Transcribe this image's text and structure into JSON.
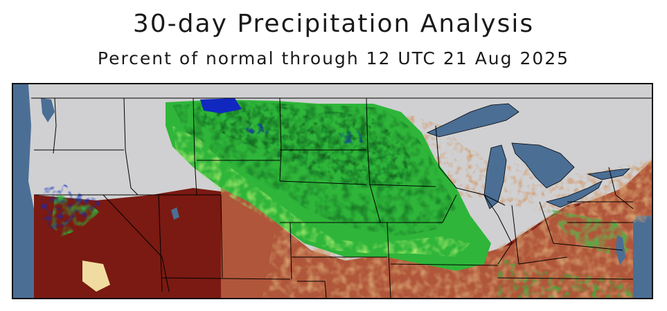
{
  "header": {
    "title": "30-day Precipitation Analysis",
    "subtitle": "Percent of normal through 12 UTC 21 Aug 2025"
  },
  "map": {
    "region": "Western and Central United States with Great Lakes",
    "colors": {
      "ocean_lakes": "#4b6e95",
      "no_data_land": "#d0d0d2",
      "very_dry": "#7a1a12",
      "dry": "#b0563a",
      "below_normal": "#d39a6a",
      "slightly_below": "#e8c7a2",
      "near_normal": "#9ee86a",
      "above_normal": "#2fb53a",
      "well_above": "#177a25",
      "much_above": "#0f5a1c",
      "extreme_wet": "#1028c0",
      "boundaries": "#000000"
    }
  }
}
